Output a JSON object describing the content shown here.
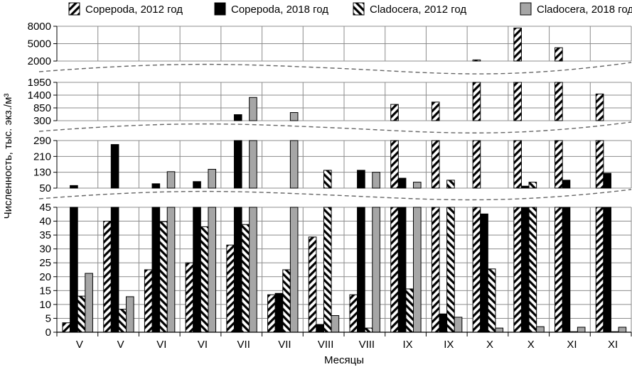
{
  "chart_data": {
    "type": "bar",
    "title": "",
    "xlabel": "Месяцы",
    "ylabel": "Численность, тыс. экз./м³",
    "categories": [
      "V",
      "V",
      "VI",
      "VI",
      "VII",
      "VII",
      "VIII",
      "VIII",
      "IX",
      "IX",
      "X",
      "X",
      "XI",
      "XI"
    ],
    "series": [
      {
        "name": "Copepoda, 2012 год",
        "pattern": "hatch-forward",
        "values": [
          3.4,
          40,
          22.5,
          25,
          31.4,
          13.5,
          34.3,
          13.5,
          1000,
          1100,
          2200,
          7700,
          4300,
          1450
        ]
      },
      {
        "name": "Copepoda, 2018 год",
        "pattern": "solid-black",
        "values": [
          63,
          270,
          72,
          83,
          560,
          14,
          2.8,
          140,
          100,
          6.6,
          42.6,
          60,
          90,
          125
        ]
      },
      {
        "name": "Cladocera, 2012 год",
        "pattern": "hatch-backward",
        "values": [
          13,
          8.3,
          39.8,
          38,
          38.8,
          22.5,
          140,
          1.5,
          15.6,
          90,
          22.8,
          80,
          0.2,
          0.2
        ]
      },
      {
        "name": "Cladocera, 2018 год",
        "pattern": "solid-gray",
        "values": [
          21.2,
          12.8,
          133,
          145,
          1300,
          650,
          6,
          130,
          80,
          5.4,
          1.5,
          2,
          1.8,
          1.8
        ]
      }
    ],
    "axis_breaks": [
      {
        "ylim": [
          2000,
          8000
        ],
        "ticks": [
          "2000",
          "5000",
          "8000"
        ]
      },
      {
        "ylim": [
          300,
          1950
        ],
        "ticks": [
          "300",
          "850",
          "1400",
          "1950"
        ]
      },
      {
        "ylim": [
          50,
          290
        ],
        "ticks": [
          "50",
          "130",
          "210",
          "290"
        ]
      },
      {
        "ylim": [
          0,
          45
        ],
        "ticks": [
          "0",
          "5",
          "10",
          "15",
          "20",
          "25",
          "30",
          "35",
          "40",
          "45"
        ]
      }
    ],
    "legend_position": "top",
    "grid": true,
    "colors": {
      "black": "#000000",
      "gray": "#a6a6a6",
      "grid": "#8c8c8c",
      "break": "#666666"
    }
  }
}
